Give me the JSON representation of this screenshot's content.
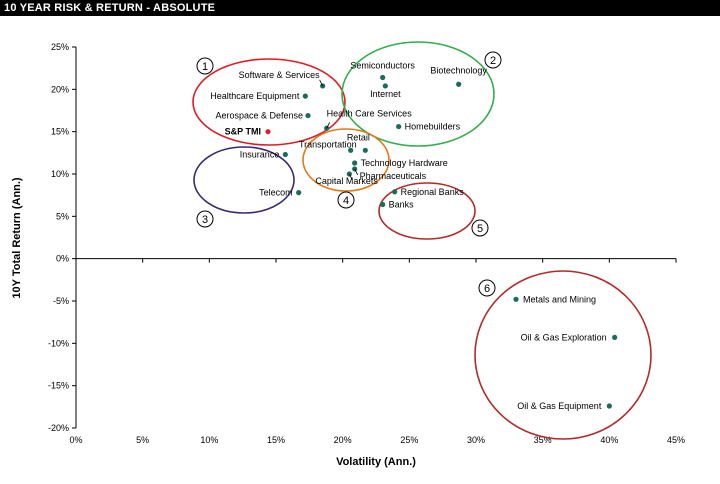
{
  "header": {
    "title": "10 YEAR RISK & RETURN - ABSOLUTE"
  },
  "chart_data": {
    "type": "scatter",
    "title": "10 YEAR RISK & RETURN - ABSOLUTE",
    "xlabel": "Volatility (Ann.)",
    "ylabel": "10Y Total Return (Ann.)",
    "xlim": [
      0,
      45
    ],
    "ylim": [
      -20,
      25
    ],
    "x_ticks": [
      "0%",
      "5%",
      "10%",
      "15%",
      "20%",
      "25%",
      "30%",
      "35%",
      "40%",
      "45%"
    ],
    "y_ticks": [
      "25%",
      "20%",
      "15%",
      "10%",
      "5%",
      "0%",
      "-5%",
      "-10%",
      "-15%",
      "-20%"
    ],
    "grid": false,
    "points": [
      {
        "label": "Software & Services",
        "x": 18.5,
        "y": 20.4,
        "color": "#1a6b5a"
      },
      {
        "label": "Healthcare Equipment",
        "x": 17.2,
        "y": 19.2,
        "color": "#1a6b5a"
      },
      {
        "label": "Aerospace & Defense",
        "x": 17.4,
        "y": 16.9,
        "color": "#1a6b5a"
      },
      {
        "label": "S&P TMI",
        "x": 14.4,
        "y": 15.0,
        "color": "#e0202a"
      },
      {
        "label": "Health Care Services",
        "x": 18.8,
        "y": 15.4,
        "color": "#1a6b5a"
      },
      {
        "label": "Semiconductors",
        "x": 23.0,
        "y": 21.4,
        "color": "#1a6b5a"
      },
      {
        "label": "Internet",
        "x": 23.2,
        "y": 20.4,
        "color": "#1a6b5a"
      },
      {
        "label": "Biotechnology",
        "x": 28.7,
        "y": 20.6,
        "color": "#1a6b5a"
      },
      {
        "label": "Homebuilders",
        "x": 24.2,
        "y": 15.6,
        "color": "#1a6b5a"
      },
      {
        "label": "Retail",
        "x": 21.7,
        "y": 12.8,
        "color": "#1a6b5a"
      },
      {
        "label": "Transportation",
        "x": 20.6,
        "y": 12.8,
        "color": "#1a6b5a"
      },
      {
        "label": "Insurance",
        "x": 15.7,
        "y": 12.3,
        "color": "#1a6b5a"
      },
      {
        "label": "Technology Hardware",
        "x": 20.9,
        "y": 11.3,
        "color": "#1a6b5a"
      },
      {
        "label": "Pharmaceuticals",
        "x": 20.9,
        "y": 10.6,
        "color": "#1a6b5a"
      },
      {
        "label": "Capital Markets",
        "x": 20.5,
        "y": 10.0,
        "color": "#1a6b5a"
      },
      {
        "label": "Telecom",
        "x": 16.7,
        "y": 7.8,
        "color": "#1a6b5a"
      },
      {
        "label": "Regional Banks",
        "x": 23.9,
        "y": 7.9,
        "color": "#1a6b5a"
      },
      {
        "label": "Banks",
        "x": 23.0,
        "y": 6.4,
        "color": "#1a6b5a"
      },
      {
        "label": "Metals and Mining",
        "x": 33.0,
        "y": -4.8,
        "color": "#1a6b5a"
      },
      {
        "label": "Oil & Gas Exploration",
        "x": 40.4,
        "y": -9.3,
        "color": "#1a6b5a"
      },
      {
        "label": "Oil & Gas Equipment",
        "x": 40.0,
        "y": -17.4,
        "color": "#1a6b5a"
      }
    ],
    "groups": [
      {
        "number": "1",
        "color": "#e01a24"
      },
      {
        "number": "2",
        "color": "#2fae49"
      },
      {
        "number": "3",
        "color": "#3a2a6e"
      },
      {
        "number": "4",
        "color": "#e07a1a"
      },
      {
        "number": "5",
        "color": "#b22a2a"
      },
      {
        "number": "6",
        "color": "#b22a2a"
      }
    ]
  }
}
